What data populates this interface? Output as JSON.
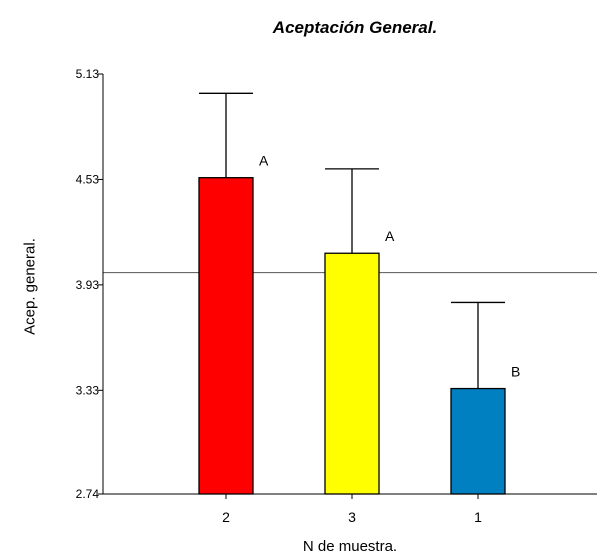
{
  "chart_data": {
    "type": "bar",
    "title": "Aceptación General.",
    "xlabel": "N de muestra.",
    "ylabel": "Acep. general.",
    "categories": [
      "2",
      "3",
      "1"
    ],
    "values": [
      4.54,
      4.11,
      3.34
    ],
    "error_upper": [
      5.02,
      4.59,
      3.83
    ],
    "significance_labels": [
      "A",
      "A",
      "B"
    ],
    "bar_colors": [
      "#ff0000",
      "#ffff00",
      "#0080c0"
    ],
    "yticks": [
      "2.74",
      "3.33",
      "3.93",
      "4.53",
      "5.13"
    ],
    "ylim": [
      2.74,
      5.13
    ],
    "reference_line": 4.0,
    "grid": false,
    "legend": "none"
  }
}
